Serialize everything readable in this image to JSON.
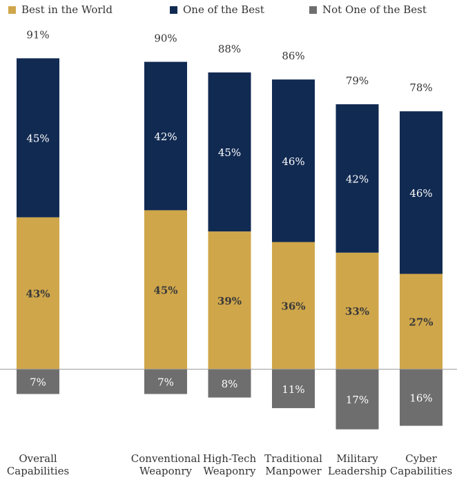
{
  "chart_data": {
    "type": "diverging_stacked_bar",
    "categories": [
      "Overall Capabilities",
      null,
      "Conventional Weaponry",
      "High-Tech Weaponry",
      "Traditional Manpower",
      "Military Leadership",
      "Cyber Capabilities"
    ],
    "series": [
      {
        "name": "Best in the World",
        "color": "#cfa64a",
        "values": [
          43,
          null,
          45,
          39,
          36,
          33,
          27
        ],
        "value_labels": [
          "43%",
          null,
          "45%",
          "39%",
          "36%",
          "33%",
          "27%"
        ]
      },
      {
        "name": "One of the Best",
        "color": "#112a52",
        "values": [
          45,
          null,
          42,
          45,
          46,
          42,
          46
        ],
        "value_labels": [
          "45%",
          null,
          "42%",
          "45%",
          "46%",
          "42%",
          "46%"
        ]
      },
      {
        "name": "Not One of the Best",
        "color": "#6e6e6e",
        "values": [
          -7,
          null,
          -7,
          -8,
          -11,
          -17,
          -16
        ],
        "value_labels": [
          "7%",
          null,
          "7%",
          "8%",
          "11%",
          "17%",
          "16%"
        ]
      }
    ],
    "totals": {
      "values": [
        91,
        null,
        90,
        88,
        86,
        79,
        78
      ],
      "value_labels": [
        "91%",
        null,
        "90%",
        "88%",
        "86%",
        "79%",
        "78%"
      ]
    },
    "ylim": [
      -20,
      100
    ],
    "legend": "top"
  }
}
